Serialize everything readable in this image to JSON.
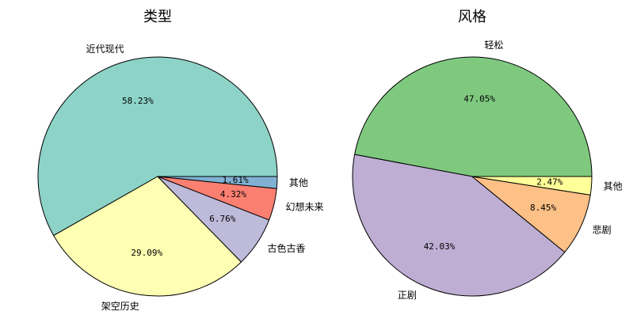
{
  "chart_data": [
    {
      "type": "pie",
      "title": "类型",
      "startangle": 0,
      "counterclock": true,
      "slices": [
        {
          "label": "近代现代",
          "value": 58.23,
          "pct_text": "58.23%",
          "color": "#8dd3c7"
        },
        {
          "label": "架空历史",
          "value": 29.09,
          "pct_text": "29.09%",
          "color": "#ffffb3"
        },
        {
          "label": "古色古香",
          "value": 6.76,
          "pct_text": "6.76%",
          "color": "#bebada"
        },
        {
          "label": "幻想未来",
          "value": 4.32,
          "pct_text": "4.32%",
          "color": "#fb8072"
        },
        {
          "label": "其他",
          "value": 1.61,
          "pct_text": "1.61%",
          "color": "#80b1d3"
        }
      ]
    },
    {
      "type": "pie",
      "title": "风格",
      "startangle": 0,
      "counterclock": true,
      "slices": [
        {
          "label": "轻松",
          "value": 47.05,
          "pct_text": "47.05%",
          "color": "#7fc97f"
        },
        {
          "label": "正剧",
          "value": 42.03,
          "pct_text": "42.03%",
          "color": "#beaed4"
        },
        {
          "label": "悲剧",
          "value": 8.45,
          "pct_text": "8.45%",
          "color": "#fdc086"
        },
        {
          "label": "其他",
          "value": 2.47,
          "pct_text": "2.47%",
          "color": "#ffff99"
        }
      ]
    }
  ]
}
